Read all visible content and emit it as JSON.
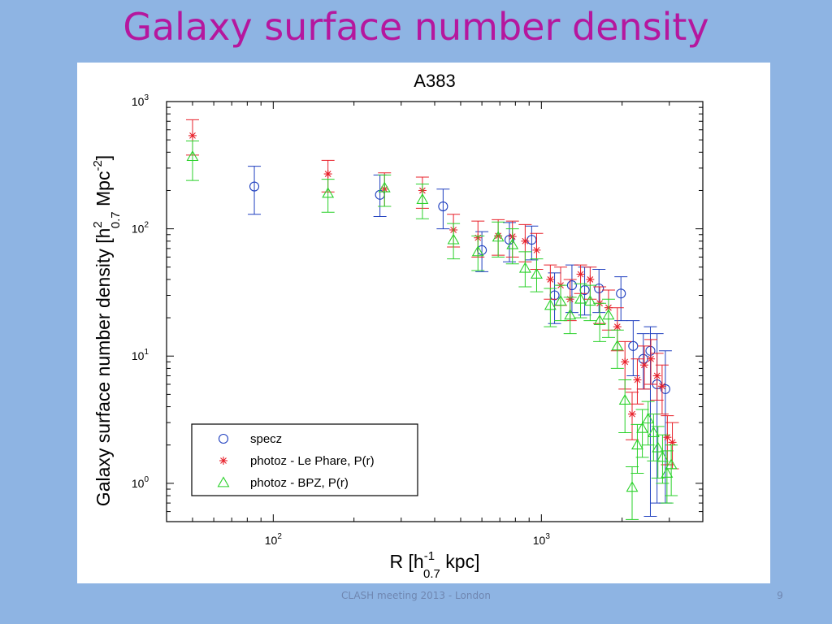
{
  "slide": {
    "title": "Galaxy surface number density",
    "footer": "CLASH meeting 2013 - London",
    "page_number": "9"
  },
  "chart_data": {
    "type": "scatter",
    "title": "A383",
    "xlabel": {
      "prefix": "R [h",
      "sup": "-1",
      "sub": "0.7",
      "suffix": " kpc]"
    },
    "ylabel": {
      "prefix": "Galaxy surface number density [h",
      "sup": "2",
      "sub": "0.7",
      "mid": " Mpc",
      "sup2": "-2",
      "suffix": "]"
    },
    "xscale": "log",
    "yscale": "log",
    "xlim": [
      40,
      4000
    ],
    "ylim": [
      0.5,
      1000
    ],
    "x_ticks": [
      {
        "value": 100,
        "base": "10",
        "exp": "2"
      },
      {
        "value": 1000,
        "base": "10",
        "exp": "3"
      }
    ],
    "y_ticks": [
      {
        "value": 1,
        "base": "10",
        "exp": "0"
      },
      {
        "value": 10,
        "base": "10",
        "exp": "1"
      },
      {
        "value": 100,
        "base": "10",
        "exp": "2"
      },
      {
        "value": 1000,
        "base": "10",
        "exp": "3"
      }
    ],
    "grid": false,
    "legend_position": "bottom-left",
    "series": [
      {
        "name": "specz",
        "marker": "circle",
        "color": "#1f3fbf",
        "points": [
          {
            "x": 85,
            "y": 215,
            "lo": 130,
            "hi": 310
          },
          {
            "x": 250,
            "y": 185,
            "lo": 125,
            "hi": 265
          },
          {
            "x": 430,
            "y": 150,
            "lo": 100,
            "hi": 205
          },
          {
            "x": 600,
            "y": 68,
            "lo": 46,
            "hi": 95
          },
          {
            "x": 760,
            "y": 82,
            "lo": 55,
            "hi": 112
          },
          {
            "x": 920,
            "y": 82,
            "lo": 57,
            "hi": 105
          },
          {
            "x": 1120,
            "y": 30,
            "lo": 18,
            "hi": 45
          },
          {
            "x": 1300,
            "y": 36,
            "lo": 22,
            "hi": 52
          },
          {
            "x": 1450,
            "y": 33,
            "lo": 21,
            "hi": 50
          },
          {
            "x": 1640,
            "y": 34,
            "lo": 22,
            "hi": 48
          },
          {
            "x": 1980,
            "y": 31,
            "lo": 19,
            "hi": 42
          },
          {
            "x": 2200,
            "y": 12,
            "lo": 7,
            "hi": 19
          },
          {
            "x": 2400,
            "y": 9.5,
            "lo": 5.5,
            "hi": 15
          },
          {
            "x": 2550,
            "y": 11,
            "lo": 0.55,
            "hi": 17
          },
          {
            "x": 2700,
            "y": 6,
            "lo": 0.7,
            "hi": 15
          },
          {
            "x": 2900,
            "y": 5.5,
            "lo": 0.7,
            "hi": 11
          }
        ]
      },
      {
        "name": "photoz - Le Phare, P(r)",
        "marker": "asterisk",
        "color": "#e8202a",
        "points": [
          {
            "x": 50,
            "y": 540,
            "lo": 380,
            "hi": 720
          },
          {
            "x": 160,
            "y": 270,
            "lo": 195,
            "hi": 345
          },
          {
            "x": 260,
            "y": 205,
            "lo": 150,
            "hi": 275
          },
          {
            "x": 360,
            "y": 200,
            "lo": 145,
            "hi": 255
          },
          {
            "x": 470,
            "y": 98,
            "lo": 72,
            "hi": 130
          },
          {
            "x": 580,
            "y": 85,
            "lo": 60,
            "hi": 115
          },
          {
            "x": 690,
            "y": 88,
            "lo": 62,
            "hi": 118
          },
          {
            "x": 780,
            "y": 87,
            "lo": 60,
            "hi": 115
          },
          {
            "x": 870,
            "y": 80,
            "lo": 55,
            "hi": 108
          },
          {
            "x": 960,
            "y": 68,
            "lo": 48,
            "hi": 92
          },
          {
            "x": 1080,
            "y": 40,
            "lo": 28,
            "hi": 52
          },
          {
            "x": 1180,
            "y": 36,
            "lo": 25,
            "hi": 50
          },
          {
            "x": 1280,
            "y": 28,
            "lo": 19,
            "hi": 40
          },
          {
            "x": 1400,
            "y": 44,
            "lo": 31,
            "hi": 52
          },
          {
            "x": 1520,
            "y": 40,
            "lo": 28,
            "hi": 50
          },
          {
            "x": 1650,
            "y": 26,
            "lo": 18,
            "hi": 35
          },
          {
            "x": 1780,
            "y": 24,
            "lo": 16,
            "hi": 33
          },
          {
            "x": 1920,
            "y": 17,
            "lo": 11,
            "hi": 24
          },
          {
            "x": 2050,
            "y": 9,
            "lo": 5.5,
            "hi": 13
          },
          {
            "x": 2180,
            "y": 3.5,
            "lo": 2.2,
            "hi": 5.2
          },
          {
            "x": 2280,
            "y": 6.5,
            "lo": 4.2,
            "hi": 9.5
          },
          {
            "x": 2420,
            "y": 8.5,
            "lo": 5.5,
            "hi": 12
          },
          {
            "x": 2560,
            "y": 9.5,
            "lo": 6,
            "hi": 13.5
          },
          {
            "x": 2700,
            "y": 7,
            "lo": 4.5,
            "hi": 10.5
          },
          {
            "x": 2820,
            "y": 5.8,
            "lo": 3.5,
            "hi": 8.5
          },
          {
            "x": 2950,
            "y": 2.3,
            "lo": 1.4,
            "hi": 3.4
          },
          {
            "x": 3080,
            "y": 2.1,
            "lo": 1.3,
            "hi": 3.0
          }
        ]
      },
      {
        "name": "photoz - BPZ, P(r)",
        "marker": "triangle",
        "color": "#2ad12a",
        "points": [
          {
            "x": 50,
            "y": 370,
            "lo": 240,
            "hi": 490
          },
          {
            "x": 160,
            "y": 190,
            "lo": 135,
            "hi": 245
          },
          {
            "x": 260,
            "y": 210,
            "lo": 150,
            "hi": 265
          },
          {
            "x": 360,
            "y": 170,
            "lo": 120,
            "hi": 225
          },
          {
            "x": 470,
            "y": 82,
            "lo": 58,
            "hi": 110
          },
          {
            "x": 580,
            "y": 66,
            "lo": 47,
            "hi": 88
          },
          {
            "x": 690,
            "y": 86,
            "lo": 60,
            "hi": 113
          },
          {
            "x": 780,
            "y": 75,
            "lo": 53,
            "hi": 100
          },
          {
            "x": 870,
            "y": 49,
            "lo": 35,
            "hi": 66
          },
          {
            "x": 960,
            "y": 44,
            "lo": 32,
            "hi": 58
          },
          {
            "x": 1080,
            "y": 25,
            "lo": 17,
            "hi": 34
          },
          {
            "x": 1180,
            "y": 27,
            "lo": 19,
            "hi": 36
          },
          {
            "x": 1280,
            "y": 21,
            "lo": 15,
            "hi": 29
          },
          {
            "x": 1400,
            "y": 28,
            "lo": 20,
            "hi": 37
          },
          {
            "x": 1520,
            "y": 27,
            "lo": 19,
            "hi": 36
          },
          {
            "x": 1650,
            "y": 19,
            "lo": 13,
            "hi": 26
          },
          {
            "x": 1780,
            "y": 21,
            "lo": 14,
            "hi": 28
          },
          {
            "x": 1920,
            "y": 12,
            "lo": 8,
            "hi": 16
          },
          {
            "x": 2050,
            "y": 4.5,
            "lo": 2.5,
            "hi": 6.5
          },
          {
            "x": 2180,
            "y": 0.93,
            "lo": 0.52,
            "hi": 1.35
          },
          {
            "x": 2280,
            "y": 2.0,
            "lo": 1.2,
            "hi": 2.9
          },
          {
            "x": 2380,
            "y": 2.7,
            "lo": 1.6,
            "hi": 3.8
          },
          {
            "x": 2500,
            "y": 3.2,
            "lo": 2.0,
            "hi": 4.4
          },
          {
            "x": 2620,
            "y": 2.5,
            "lo": 1.5,
            "hi": 3.5
          },
          {
            "x": 2720,
            "y": 1.9,
            "lo": 1.1,
            "hi": 2.8
          },
          {
            "x": 2830,
            "y": 1.6,
            "lo": 1.0,
            "hi": 2.4
          },
          {
            "x": 2940,
            "y": 1.2,
            "lo": 0.7,
            "hi": 1.8
          },
          {
            "x": 3050,
            "y": 1.4,
            "lo": 0.8,
            "hi": 2.0
          }
        ]
      }
    ]
  }
}
